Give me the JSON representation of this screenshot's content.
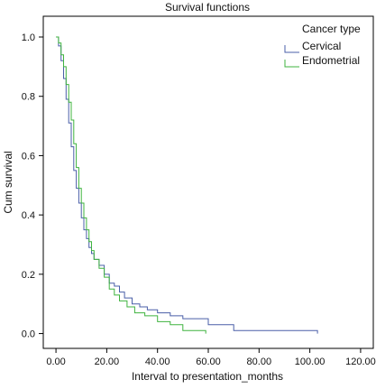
{
  "chart_data": {
    "type": "line",
    "title": "Survival functions",
    "xlabel": "Interval to presentation_months",
    "ylabel": "Cum survival",
    "xlim": [
      -5,
      125
    ],
    "ylim": [
      -0.05,
      1.07
    ],
    "xticks": [
      0,
      20,
      40,
      60,
      80,
      100,
      120
    ],
    "xtick_labels": [
      "0.00",
      "20.00",
      "40.00",
      "60.00",
      "80.00",
      "100.00",
      "120.00"
    ],
    "yticks": [
      0,
      0.2,
      0.4,
      0.6,
      0.8,
      1.0
    ],
    "ytick_labels": [
      "0.0",
      "0.2",
      "0.4",
      "0.6",
      "0.8",
      "1.0"
    ],
    "grid": false,
    "step": true,
    "legend": {
      "title": "Cancer type",
      "placement": "top-right"
    },
    "series": [
      {
        "name": "Cervical",
        "color": "#4a5fa8",
        "x": [
          0,
          1,
          2,
          3,
          4,
          5,
          6,
          7,
          8,
          9,
          10,
          11,
          12,
          13,
          14,
          15,
          17,
          19,
          21,
          23,
          25,
          27,
          30,
          33,
          36,
          40,
          45,
          50,
          60,
          70,
          103
        ],
        "y": [
          1.0,
          0.97,
          0.92,
          0.86,
          0.79,
          0.71,
          0.63,
          0.55,
          0.49,
          0.44,
          0.39,
          0.35,
          0.32,
          0.29,
          0.27,
          0.25,
          0.23,
          0.2,
          0.17,
          0.16,
          0.14,
          0.12,
          0.1,
          0.09,
          0.08,
          0.07,
          0.06,
          0.05,
          0.03,
          0.01,
          0.01
        ]
      },
      {
        "name": "Endometrial",
        "color": "#3fb33f",
        "x": [
          0,
          1,
          2,
          3,
          4,
          5,
          6,
          7,
          8,
          9,
          10,
          11,
          12,
          13,
          14,
          15,
          17,
          19,
          21,
          23,
          25,
          28,
          31,
          35,
          40,
          45,
          50,
          59
        ],
        "y": [
          1.0,
          0.98,
          0.94,
          0.9,
          0.84,
          0.78,
          0.72,
          0.64,
          0.56,
          0.49,
          0.44,
          0.39,
          0.35,
          0.31,
          0.28,
          0.25,
          0.22,
          0.19,
          0.15,
          0.13,
          0.11,
          0.09,
          0.07,
          0.06,
          0.04,
          0.03,
          0.01,
          0.01
        ]
      }
    ]
  }
}
